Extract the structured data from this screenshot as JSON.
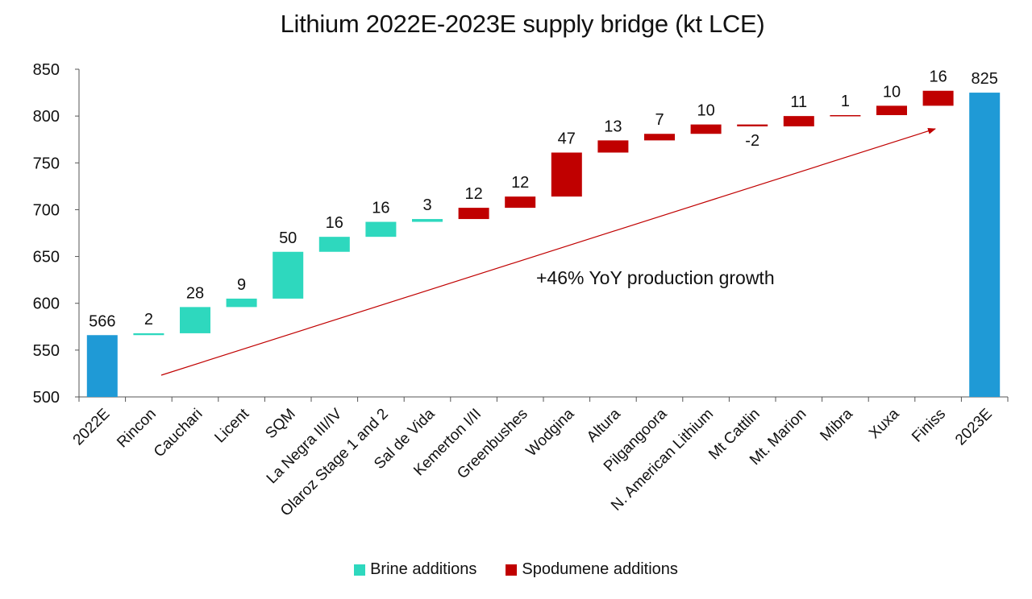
{
  "chart_data": {
    "type": "waterfall",
    "title": "Lithium 2022E-2023E supply bridge (kt LCE)",
    "categories": [
      "2022E",
      "Rincon",
      "Cauchari",
      "Licent",
      "SQM",
      "La Negra III/IV",
      "Olaroz Stage 1 and 2",
      "Sal de Vida",
      "Kemerton I/II",
      "Greenbushes",
      "Wodgina",
      "Altura",
      "Pilgangoora",
      "N. American Lithium",
      "Mt Cattlin",
      "Mt. Marion",
      "Mibra",
      "Xuxa",
      "Finiss",
      "2023E"
    ],
    "kinds": [
      "total",
      "brine",
      "brine",
      "brine",
      "brine",
      "brine",
      "brine",
      "brine",
      "spodumene",
      "spodumene",
      "spodumene",
      "spodumene",
      "spodumene",
      "spodumene",
      "spodumene",
      "spodumene",
      "spodumene",
      "spodumene",
      "spodumene",
      "total"
    ],
    "values": [
      566,
      2,
      28,
      9,
      50,
      16,
      16,
      3,
      12,
      12,
      47,
      13,
      7,
      10,
      -2,
      11,
      1,
      10,
      16,
      825
    ],
    "data_labels": [
      "566",
      "2",
      "28",
      "9",
      "50",
      "16",
      "16",
      "3",
      "12",
      "12",
      "47",
      "13",
      "7",
      "10",
      "-2",
      "11",
      "1",
      "10",
      "16",
      "825"
    ],
    "ylim": [
      500,
      850
    ],
    "yticks": [
      500,
      550,
      600,
      650,
      700,
      750,
      800,
      850
    ],
    "grid": false,
    "legend": [
      {
        "name": "Brine additions",
        "color": "#2ed8be"
      },
      {
        "name": "Spodumene additions",
        "color": "#c00000"
      }
    ],
    "legend_position": "bottom",
    "colors": {
      "total": "#1f9ad6",
      "brine": "#2ed8be",
      "spodumene": "#c00000",
      "arrow": "#c00000"
    },
    "annotation": "+46% YoY production growth"
  }
}
